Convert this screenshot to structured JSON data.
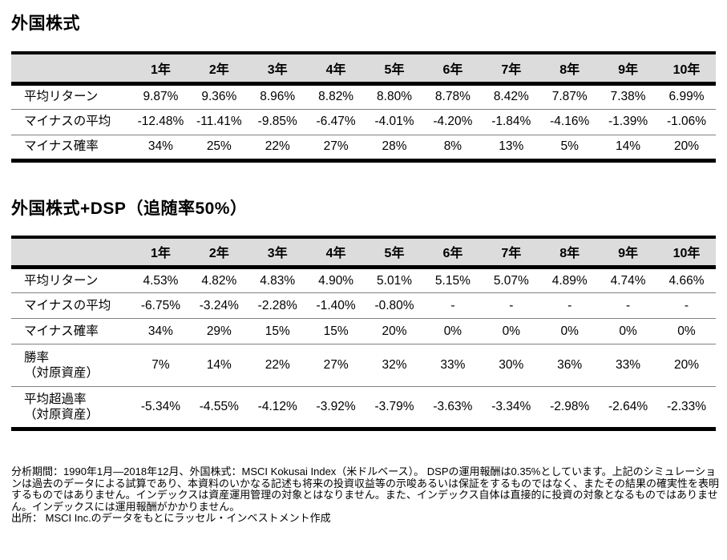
{
  "colors": {
    "header_bg": "#dcdcdc",
    "border_black": "#000000",
    "row_divider": "#808080",
    "text": "#000000",
    "page_bg": "#ffffff"
  },
  "table1": {
    "title": "外国株式",
    "columns": [
      "1年",
      "2年",
      "3年",
      "4年",
      "5年",
      "6年",
      "7年",
      "8年",
      "9年",
      "10年"
    ],
    "rows": [
      {
        "label": "平均リターン",
        "values": [
          "9.87%",
          "9.36%",
          "8.96%",
          "8.82%",
          "8.80%",
          "8.78%",
          "8.42%",
          "7.87%",
          "7.38%",
          "6.99%"
        ]
      },
      {
        "label": "マイナスの平均",
        "values": [
          "-12.48%",
          "-11.41%",
          "-9.85%",
          "-6.47%",
          "-4.01%",
          "-4.20%",
          "-1.84%",
          "-4.16%",
          "-1.39%",
          "-1.06%"
        ]
      },
      {
        "label": "マイナス確率",
        "values": [
          "34%",
          "25%",
          "22%",
          "27%",
          "28%",
          "8%",
          "13%",
          "5%",
          "14%",
          "20%"
        ]
      }
    ]
  },
  "table2": {
    "title": "外国株式+DSP（追随率50%）",
    "columns": [
      "1年",
      "2年",
      "3年",
      "4年",
      "5年",
      "6年",
      "7年",
      "8年",
      "9年",
      "10年"
    ],
    "rows": [
      {
        "label": "平均リターン",
        "values": [
          "4.53%",
          "4.82%",
          "4.83%",
          "4.90%",
          "5.01%",
          "5.15%",
          "5.07%",
          "4.89%",
          "4.74%",
          "4.66%"
        ]
      },
      {
        "label": "マイナスの平均",
        "values": [
          "-6.75%",
          "-3.24%",
          "-2.28%",
          "-1.40%",
          "-0.80%",
          "-",
          "-",
          "-",
          "-",
          "-"
        ]
      },
      {
        "label": "マイナス確率",
        "values": [
          "34%",
          "29%",
          "15%",
          "15%",
          "20%",
          "0%",
          "0%",
          "0%",
          "0%",
          "0%"
        ]
      },
      {
        "label": "勝率",
        "label2": "（対原資産）",
        "values": [
          "7%",
          "14%",
          "22%",
          "27%",
          "32%",
          "33%",
          "30%",
          "36%",
          "33%",
          "20%"
        ]
      },
      {
        "label": "平均超過率",
        "label2": "（対原資産）",
        "values": [
          "-5.34%",
          "-4.55%",
          "-4.12%",
          "-3.92%",
          "-3.79%",
          "-3.63%",
          "-3.34%",
          "-2.98%",
          "-2.64%",
          "-2.33%"
        ]
      }
    ]
  },
  "footer": {
    "note": "分析期間：1990年1月―2018年12月、外国株式：MSCI Kokusai Index（米ドルベース）。 DSPの運用報酬は0.35%としています。上記のシミュレーションは過去のデータによる試算であり、本資料のいかなる記述も将来の投資収益等の示唆あるいは保証をするものではなく、またその結果の確実性を表明するものではありません。インデックスは資産運用管理の対象とはなりません。また、インデックス自体は直接的に投資の対象となるものではありません。インデックスには運用報酬がかかりません。",
    "source": "出所：  MSCI Inc.のデータをもとにラッセル・インベストメント作成"
  }
}
